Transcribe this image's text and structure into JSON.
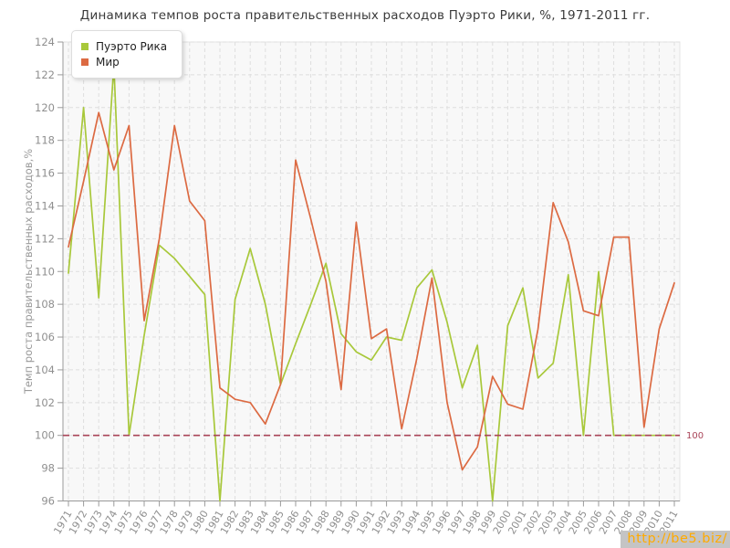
{
  "watermark": "http://be5.biz/",
  "reference_label": "100",
  "chart_data": {
    "type": "line",
    "title": "Динамика темпов роста правительственных расходов Пуэрто Рики, %, 1971-2011 гг.",
    "xlabel": "",
    "ylabel": "Темп роста правительственных расходов,%",
    "ylim": [
      96,
      124
    ],
    "y_ticks": [
      96,
      98,
      100,
      102,
      104,
      106,
      108,
      110,
      112,
      114,
      116,
      118,
      120,
      122,
      124
    ],
    "grid": true,
    "legend_position": "top-left",
    "x": [
      1971,
      1972,
      1973,
      1974,
      1975,
      1976,
      1977,
      1978,
      1979,
      1980,
      1981,
      1982,
      1983,
      1984,
      1985,
      1986,
      1987,
      1988,
      1989,
      1990,
      1991,
      1992,
      1993,
      1994,
      1995,
      1996,
      1997,
      1998,
      1999,
      2000,
      2001,
      2002,
      2003,
      2004,
      2005,
      2006,
      2007,
      2008,
      2009,
      2010,
      2011
    ],
    "series": [
      {
        "name": "Пуэрто Рика",
        "color": "#a8c83a",
        "values": [
          109.9,
          120.0,
          108.4,
          122.6,
          100.0,
          106.1,
          111.6,
          110.8,
          109.7,
          108.6,
          96.0,
          108.3,
          111.4,
          108.0,
          103.1,
          105.6,
          108.0,
          110.5,
          106.2,
          105.1,
          104.6,
          106.0,
          105.8,
          109.0,
          110.1,
          106.9,
          102.9,
          105.5,
          96.0,
          106.7,
          109.0,
          103.5,
          104.4,
          109.8,
          100.0,
          110.0,
          100.0,
          100.0,
          100.0,
          100.0,
          100.0
        ]
      },
      {
        "name": "Мир",
        "color": "#dc6a42",
        "values": [
          111.5,
          115.5,
          119.7,
          116.2,
          118.9,
          107.0,
          112.0,
          118.9,
          114.3,
          113.1,
          102.9,
          102.2,
          102.0,
          100.7,
          103.1,
          116.8,
          113.2,
          109.4,
          102.8,
          113.0,
          105.9,
          106.5,
          100.4,
          104.7,
          109.6,
          102.0,
          97.9,
          99.3,
          103.6,
          101.9,
          101.6,
          106.5,
          114.2,
          111.8,
          107.6,
          107.3,
          112.1,
          112.1,
          100.5,
          106.5,
          109.3
        ]
      }
    ],
    "reference_line": {
      "value": 100,
      "label": "100",
      "color": "#a94458"
    }
  },
  "style": {
    "plot_bg": "#f8f8f8",
    "plot_border": "#e3e3e3",
    "grid_color": "#dedede",
    "axis_color": "#9a9a9a",
    "tick_label_color": "#8f8f8f"
  }
}
